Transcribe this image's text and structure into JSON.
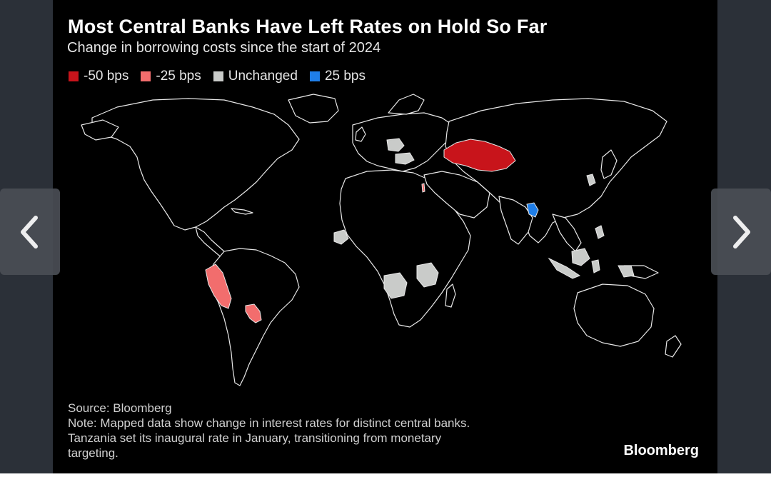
{
  "chart": {
    "title": "Most Central Banks Have Left Rates on Hold So Far",
    "subtitle": "Change in borrowing costs since the start of 2024",
    "legend": [
      {
        "label": "-50 bps",
        "color": "#c8141b"
      },
      {
        "label": "-25 bps",
        "color": "#f26d6d"
      },
      {
        "label": "Unchanged",
        "color": "#c9cbc9"
      },
      {
        "label": "25 bps",
        "color": "#1f7ee8"
      }
    ],
    "source": "Source: Bloomberg",
    "note_lines": [
      "Note: Mapped data show change in interest rates for distinct central banks.",
      "Tanzania set its inaugural rate in January, transitioning from monetary",
      "targeting."
    ],
    "brand": "Bloomberg"
  },
  "map_style": {
    "land_fill": "#000000",
    "border_color": "#e8e8e8",
    "background": "#000000"
  },
  "navigation": {
    "prev_icon": "chevron-left-icon",
    "next_icon": "chevron-right-icon"
  }
}
